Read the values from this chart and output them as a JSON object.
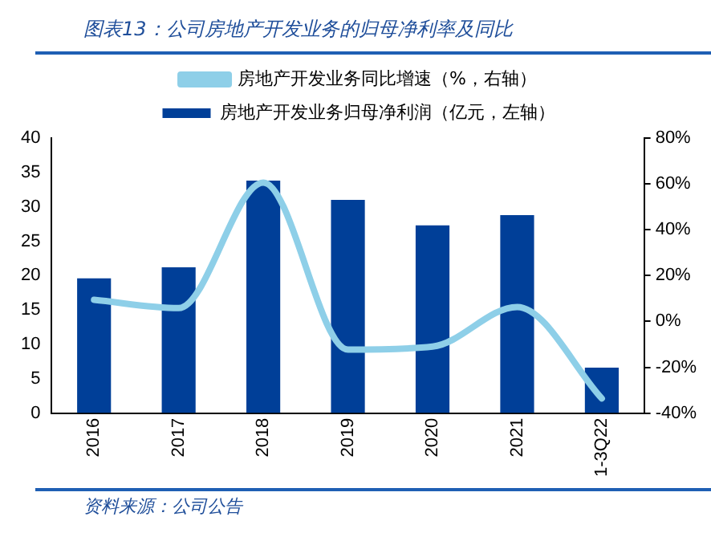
{
  "chart_data": {
    "type": "bar",
    "title": "图表13：公司房地产开发业务的归母净利率及同比",
    "categories": [
      "2016",
      "2017",
      "2018",
      "2019",
      "2020",
      "2021",
      "1-3Q22"
    ],
    "series": [
      {
        "name": "房地产开发业务归母净利润（亿元，左轴）",
        "color": "#003f98",
        "values": [
          19.6,
          21.2,
          33.8,
          31.0,
          27.3,
          28.8,
          6.6
        ]
      },
      {
        "name": "房地产开发业务同比增速（%，右轴）",
        "type": "line",
        "axis": "y2",
        "color": "#8ecfe8",
        "values": [
          9.4,
          5.8,
          60.6,
          -12.3,
          -11,
          6.3,
          -33.6
        ]
      }
    ],
    "ylim": [
      0,
      40
    ],
    "yticks": [
      0,
      5,
      10,
      15,
      20,
      25,
      30,
      35,
      40
    ],
    "y2lim": [
      -40,
      80
    ],
    "y2ticks": [
      {
        "value": -40,
        "label": "-40%"
      },
      {
        "value": -20,
        "label": "-20%"
      },
      {
        "value": 0,
        "label": "0%"
      },
      {
        "value": 20,
        "label": "20%"
      },
      {
        "value": 40,
        "label": "40%"
      },
      {
        "value": 60,
        "label": "60%"
      },
      {
        "value": 80,
        "label": "80%"
      }
    ],
    "grid": false,
    "legend": "top",
    "marker": "none",
    "annotations": [
      "资料来源：公司公告"
    ]
  }
}
